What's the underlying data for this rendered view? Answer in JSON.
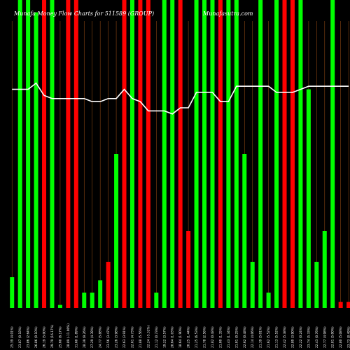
{
  "chart_data": {
    "type": "bar",
    "title": "Munafa Money Flow Charts for 511589 (GROUP)",
    "site": "Munafasutra.com",
    "colors": {
      "up": "#00ff00",
      "down": "#ff0000",
      "line": "#ffffff",
      "grid": "#8b4513",
      "background": "#000000"
    },
    "ylim": [
      0,
      100
    ],
    "x": [
      "25.39 (4.01%)",
      "23.87 (0.18%)",
      "23.86 (2.64%)",
      "26.86 (0.10%)",
      "26.19 (5.00%)",
      "29.79 (16.17%)",
      "25.60 (6.17%)",
      "28.89 (-11.00%)",
      "31.60 (1.89%)",
      "28.39 (9.26%)",
      "27.29 (4.39%)",
      "24.77 (5.88%)",
      "23.56 (3.47%)",
      "23.26 (3.98%)",
      "22.63 (3.91%)",
      "22.61 (4.73%)",
      "21.88 (5.56%)",
      "22.24 (-5.32%)",
      "21.12 (0.73%)",
      "19.22 (3.57%)",
      "20.64 (1.03%)",
      "18.64 (1.90%)",
      "20.25 (1.44%)",
      "21.25 (6.53%)",
      "21.78 (2.56%)",
      "21.82 (0.48%)",
      "21.00 (1.35%)",
      "21.43 (1.34%)",
      "21.01 (0.25%)",
      "22.62 (0.48%)",
      "22.14 (4.06%)",
      "21.39 (5.01%)",
      "21.62 (5.52%)",
      "21.13 (5.52%)",
      "22.42 (5.38%)",
      "22.80 (3.90%)",
      "22.22 (0.24%)",
      "23.74 (5.33%)",
      "22.43 (0.76%)",
      "22.77 (4.98%)",
      "22.81 (5.00%)",
      "22.80 (5.08%)",
      "23.73 (8.49%)"
    ],
    "values": [
      10,
      100,
      100,
      96,
      100,
      100,
      1,
      100,
      100,
      5,
      5,
      9,
      15,
      50,
      100,
      100,
      100,
      100,
      5,
      100,
      100,
      100,
      25,
      100,
      100,
      100,
      100,
      100,
      100,
      50,
      15,
      100,
      5,
      100,
      100,
      100,
      100,
      71,
      15,
      25,
      100,
      2,
      2
    ],
    "direction": [
      "up",
      "up",
      "up",
      "up",
      "down",
      "up",
      "up",
      "down",
      "down",
      "up",
      "up",
      "up",
      "down",
      "up",
      "down",
      "up",
      "down",
      "down",
      "up",
      "up",
      "up",
      "down",
      "down",
      "up",
      "up",
      "up",
      "down",
      "up",
      "up",
      "up",
      "up",
      "up",
      "up",
      "up",
      "down",
      "down",
      "up",
      "up",
      "up",
      "up",
      "up",
      "down",
      "down"
    ],
    "line": [
      71,
      71,
      71,
      73,
      69,
      68,
      68,
      68,
      68,
      68,
      67,
      67,
      68,
      68,
      71,
      68,
      67,
      64,
      64,
      64,
      63,
      65,
      65,
      70,
      70,
      70,
      67,
      67,
      72,
      72,
      72,
      72,
      72,
      70,
      70,
      70,
      71,
      72,
      72,
      72,
      72,
      72,
      72
    ]
  }
}
